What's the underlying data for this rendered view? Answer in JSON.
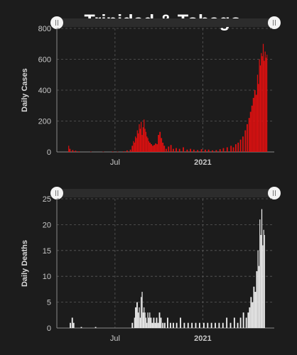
{
  "title": "Trinidad & Tobago",
  "colors": {
    "background": "#1c1c1c",
    "cases": "#e01010",
    "deaths": "#f2f2f2",
    "grid": "#5a5a5a",
    "axis_text": "#c8c8c8"
  },
  "chart_data": [
    {
      "type": "bar",
      "title": "Trinidad & Tobago",
      "xlabel": "",
      "ylabel": "Daily Cases",
      "ylim": [
        0,
        800
      ],
      "yticks": [
        0,
        200,
        400,
        600,
        800
      ],
      "x_tick_labels": [
        "Jul",
        "2021"
      ],
      "x_tick_dates": [
        "2020-07-01",
        "2021-01-01"
      ],
      "xlim": [
        "2020-03-01",
        "2021-05-31"
      ],
      "grid": true,
      "series": [
        {
          "color": "#e01010",
          "points": [
            [
              "2020-03-25",
              40
            ],
            [
              "2020-03-27",
              20
            ],
            [
              "2020-04-02",
              12
            ],
            [
              "2020-04-08",
              8
            ],
            [
              "2020-04-15",
              4
            ],
            [
              "2020-05-10",
              2
            ],
            [
              "2020-06-05",
              2
            ],
            [
              "2020-06-25",
              3
            ],
            [
              "2020-07-05",
              2
            ],
            [
              "2020-07-18",
              4
            ],
            [
              "2020-07-25",
              10
            ],
            [
              "2020-08-01",
              15
            ],
            [
              "2020-08-05",
              40
            ],
            [
              "2020-08-08",
              70
            ],
            [
              "2020-08-10",
              60
            ],
            [
              "2020-08-12",
              100
            ],
            [
              "2020-08-14",
              90
            ],
            [
              "2020-08-16",
              140
            ],
            [
              "2020-08-18",
              120
            ],
            [
              "2020-08-20",
              180
            ],
            [
              "2020-08-22",
              150
            ],
            [
              "2020-08-24",
              195
            ],
            [
              "2020-08-26",
              110
            ],
            [
              "2020-08-28",
              160
            ],
            [
              "2020-08-30",
              210
            ],
            [
              "2020-09-01",
              150
            ],
            [
              "2020-09-03",
              130
            ],
            [
              "2020-09-05",
              100
            ],
            [
              "2020-09-07",
              90
            ],
            [
              "2020-09-09",
              70
            ],
            [
              "2020-09-11",
              60
            ],
            [
              "2020-09-14",
              50
            ],
            [
              "2020-09-17",
              40
            ],
            [
              "2020-09-20",
              45
            ],
            [
              "2020-09-23",
              55
            ],
            [
              "2020-09-26",
              50
            ],
            [
              "2020-09-29",
              110
            ],
            [
              "2020-10-02",
              130
            ],
            [
              "2020-10-05",
              90
            ],
            [
              "2020-10-08",
              60
            ],
            [
              "2020-10-11",
              40
            ],
            [
              "2020-10-15",
              20
            ],
            [
              "2020-10-20",
              35
            ],
            [
              "2020-10-25",
              45
            ],
            [
              "2020-10-30",
              20
            ],
            [
              "2020-11-05",
              25
            ],
            [
              "2020-11-12",
              20
            ],
            [
              "2020-11-20",
              30
            ],
            [
              "2020-11-28",
              15
            ],
            [
              "2020-12-05",
              20
            ],
            [
              "2020-12-12",
              15
            ],
            [
              "2020-12-20",
              12
            ],
            [
              "2020-12-28",
              18
            ],
            [
              "2021-01-05",
              15
            ],
            [
              "2021-01-12",
              15
            ],
            [
              "2021-01-20",
              10
            ],
            [
              "2021-01-28",
              12
            ],
            [
              "2021-02-05",
              18
            ],
            [
              "2021-02-12",
              25
            ],
            [
              "2021-02-20",
              30
            ],
            [
              "2021-02-28",
              40
            ],
            [
              "2021-03-05",
              30
            ],
            [
              "2021-03-10",
              50
            ],
            [
              "2021-03-15",
              60
            ],
            [
              "2021-03-20",
              80
            ],
            [
              "2021-03-25",
              100
            ],
            [
              "2021-03-30",
              140
            ],
            [
              "2021-04-03",
              180
            ],
            [
              "2021-04-07",
              220
            ],
            [
              "2021-04-10",
              260
            ],
            [
              "2021-04-13",
              300
            ],
            [
              "2021-04-16",
              350
            ],
            [
              "2021-04-19",
              400
            ],
            [
              "2021-04-22",
              370
            ],
            [
              "2021-04-25",
              500
            ],
            [
              "2021-04-27",
              440
            ],
            [
              "2021-04-29",
              600
            ],
            [
              "2021-05-01",
              560
            ],
            [
              "2021-05-03",
              640
            ],
            [
              "2021-05-05",
              620
            ],
            [
              "2021-05-07",
              700
            ],
            [
              "2021-05-09",
              590
            ],
            [
              "2021-05-11",
              650
            ],
            [
              "2021-05-13",
              610
            ],
            [
              "2021-05-15",
              630
            ]
          ]
        }
      ]
    },
    {
      "type": "bar",
      "xlabel": "",
      "ylabel": "Daily Deaths",
      "ylim": [
        0,
        25
      ],
      "yticks": [
        0,
        5,
        10,
        15,
        20,
        25
      ],
      "x_tick_labels": [
        "Jul",
        "2021"
      ],
      "x_tick_dates": [
        "2020-07-01",
        "2021-01-01"
      ],
      "xlim": [
        "2020-03-01",
        "2021-05-31"
      ],
      "grid": true,
      "series": [
        {
          "color": "#f2f2f2",
          "points": [
            [
              "2020-03-28",
              1
            ],
            [
              "2020-04-01",
              2
            ],
            [
              "2020-04-04",
              1
            ],
            [
              "2020-04-20",
              0.2
            ],
            [
              "2020-05-20",
              0.2
            ],
            [
              "2020-08-05",
              1
            ],
            [
              "2020-08-10",
              2
            ],
            [
              "2020-08-12",
              4
            ],
            [
              "2020-08-15",
              5
            ],
            [
              "2020-08-18",
              3
            ],
            [
              "2020-08-20",
              4
            ],
            [
              "2020-08-22",
              2
            ],
            [
              "2020-08-24",
              6
            ],
            [
              "2020-08-26",
              7
            ],
            [
              "2020-08-28",
              3
            ],
            [
              "2020-08-30",
              4
            ],
            [
              "2020-09-01",
              3
            ],
            [
              "2020-09-03",
              2
            ],
            [
              "2020-09-05",
              1
            ],
            [
              "2020-09-07",
              3
            ],
            [
              "2020-09-09",
              2
            ],
            [
              "2020-09-11",
              3
            ],
            [
              "2020-09-13",
              2
            ],
            [
              "2020-09-16",
              1
            ],
            [
              "2020-09-19",
              2
            ],
            [
              "2020-09-22",
              1
            ],
            [
              "2020-09-25",
              2
            ],
            [
              "2020-09-28",
              1
            ],
            [
              "2020-10-01",
              3
            ],
            [
              "2020-10-04",
              2
            ],
            [
              "2020-10-08",
              1
            ],
            [
              "2020-10-12",
              1
            ],
            [
              "2020-10-18",
              2
            ],
            [
              "2020-10-24",
              1
            ],
            [
              "2020-10-30",
              1
            ],
            [
              "2020-11-06",
              1
            ],
            [
              "2020-11-14",
              2
            ],
            [
              "2020-11-22",
              1
            ],
            [
              "2020-11-30",
              1
            ],
            [
              "2020-12-08",
              1
            ],
            [
              "2020-12-16",
              1
            ],
            [
              "2020-12-24",
              1
            ],
            [
              "2021-01-02",
              1
            ],
            [
              "2021-01-10",
              1
            ],
            [
              "2021-01-18",
              1
            ],
            [
              "2021-01-26",
              1
            ],
            [
              "2021-02-03",
              1
            ],
            [
              "2021-02-11",
              1
            ],
            [
              "2021-02-19",
              2
            ],
            [
              "2021-02-27",
              1
            ],
            [
              "2021-03-07",
              2
            ],
            [
              "2021-03-14",
              1
            ],
            [
              "2021-03-20",
              2
            ],
            [
              "2021-03-26",
              3
            ],
            [
              "2021-04-01",
              2
            ],
            [
              "2021-04-05",
              3
            ],
            [
              "2021-04-08",
              4
            ],
            [
              "2021-04-11",
              6
            ],
            [
              "2021-04-14",
              5
            ],
            [
              "2021-04-17",
              8
            ],
            [
              "2021-04-20",
              7
            ],
            [
              "2021-04-23",
              11
            ],
            [
              "2021-04-26",
              15
            ],
            [
              "2021-04-28",
              12
            ],
            [
              "2021-04-30",
              21
            ],
            [
              "2021-05-02",
              18
            ],
            [
              "2021-05-04",
              23
            ],
            [
              "2021-05-06",
              16
            ],
            [
              "2021-05-08",
              19
            ],
            [
              "2021-05-10",
              18
            ]
          ]
        }
      ]
    }
  ]
}
